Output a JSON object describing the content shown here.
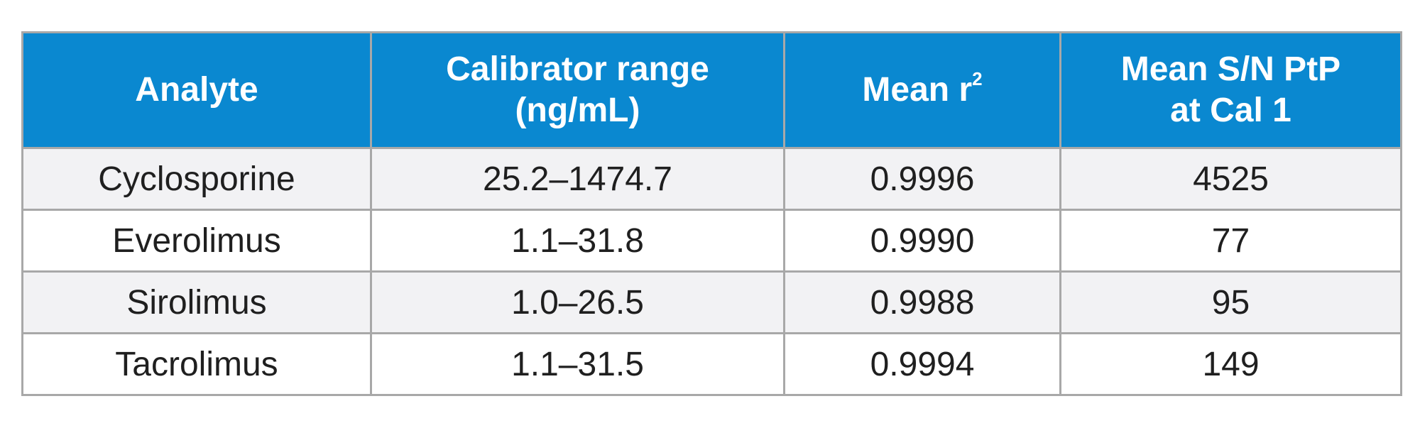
{
  "table": {
    "header": {
      "analyte": "Analyte",
      "calibrator_range": {
        "line1": "Calibrator range",
        "line2": "(ng/mL)"
      },
      "mean_r2": {
        "label": "Mean r",
        "superscript": "2"
      },
      "mean_sn": {
        "line1": "Mean S/N PtP",
        "line2": "at Cal 1"
      }
    },
    "rows": [
      {
        "analyte": "Cyclosporine",
        "range": "25.2–1474.7",
        "r2": "0.9996",
        "sn": "4525"
      },
      {
        "analyte": "Everolimus",
        "range": "1.1–31.8",
        "r2": "0.9990",
        "sn": "77"
      },
      {
        "analyte": "Sirolimus",
        "range": "1.0–26.5",
        "r2": "0.9988",
        "sn": "95"
      },
      {
        "analyte": "Tacrolimus",
        "range": "1.1–31.5",
        "r2": "0.9994",
        "sn": "149"
      }
    ]
  },
  "colors": {
    "header_bg": "#0a88d0",
    "header_text": "#ffffff",
    "stripe_bg": "#f2f2f4",
    "border": "#a8a8a8"
  }
}
